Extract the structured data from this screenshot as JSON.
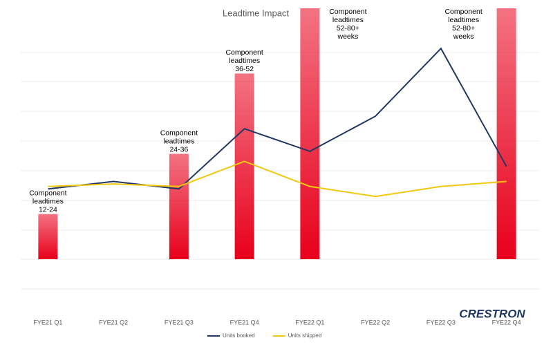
{
  "chart_data": {
    "type": "combo",
    "title": "Leadtime Impact",
    "categories": [
      "FYE21 Q1",
      "FYE21 Q2",
      "FYE21 Q3",
      "FYE21 Q4",
      "FYE22 Q1",
      "FYE22 Q2",
      "FYE22 Q3",
      "FYE22 Q4"
    ],
    "ylim": [
      0,
      100
    ],
    "series": [
      {
        "type": "bar",
        "color": "#e8001c",
        "values": [
          18,
          null,
          42,
          74,
          100,
          null,
          null,
          100
        ]
      },
      {
        "type": "line",
        "name": "Units booked",
        "color": "#1f3864",
        "values": [
          28,
          31,
          28,
          52,
          43,
          57,
          84,
          37
        ]
      },
      {
        "type": "line",
        "name": "Units shipped",
        "color": "#f2c80f",
        "values": [
          29,
          30,
          29,
          39,
          29,
          25,
          29,
          31
        ]
      }
    ],
    "annotations": [
      [
        "Component",
        "leadtimes",
        "12-24"
      ],
      null,
      [
        "Component",
        "leadtimes",
        "24-36"
      ],
      [
        "Component",
        "leadtimes",
        "36-52"
      ],
      [
        "Component",
        "leadtimes",
        "52-80+",
        "weeks"
      ],
      null,
      null,
      [
        "Component",
        "leadtimes",
        "52-80+",
        "weeks"
      ]
    ],
    "logo": "CRESTRON"
  }
}
